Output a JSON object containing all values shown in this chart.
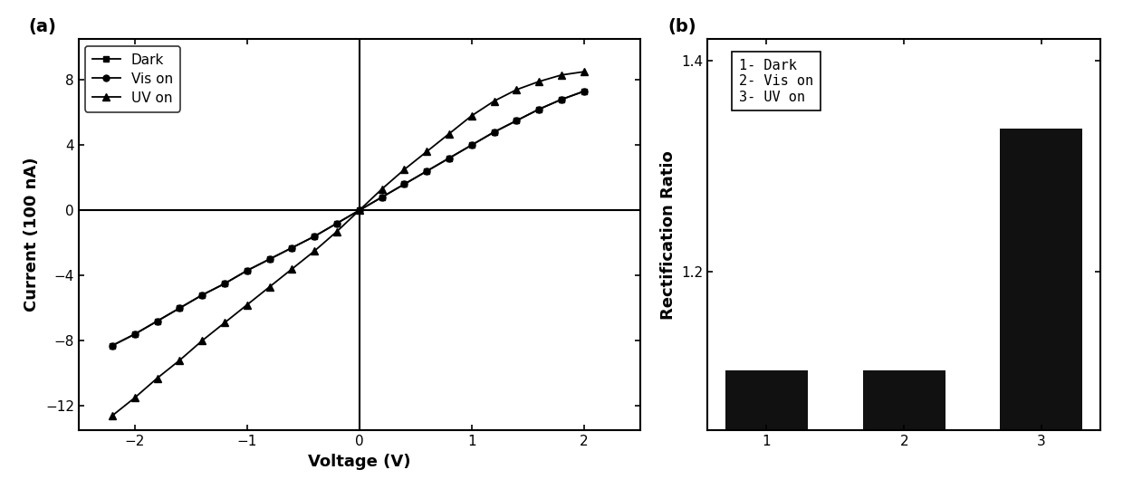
{
  "panel_a": {
    "dark_x": [
      -2.2,
      -2.0,
      -1.8,
      -1.6,
      -1.4,
      -1.2,
      -1.0,
      -0.8,
      -0.6,
      -0.4,
      -0.2,
      0.0,
      0.2,
      0.4,
      0.6,
      0.8,
      1.0,
      1.2,
      1.4,
      1.6,
      1.8,
      2.0
    ],
    "dark_y": [
      -8.3,
      -7.6,
      -6.8,
      -6.0,
      -5.2,
      -4.5,
      -3.7,
      -3.0,
      -2.3,
      -1.6,
      -0.8,
      0.0,
      0.8,
      1.6,
      2.4,
      3.2,
      4.0,
      4.8,
      5.5,
      6.2,
      6.8,
      7.3
    ],
    "vis_x": [
      -2.2,
      -2.0,
      -1.8,
      -1.6,
      -1.4,
      -1.2,
      -1.0,
      -0.8,
      -0.6,
      -0.4,
      -0.2,
      0.0,
      0.2,
      0.4,
      0.6,
      0.8,
      1.0,
      1.2,
      1.4,
      1.6,
      1.8,
      2.0
    ],
    "vis_y": [
      -8.3,
      -7.6,
      -6.8,
      -6.0,
      -5.2,
      -4.5,
      -3.7,
      -3.0,
      -2.3,
      -1.6,
      -0.8,
      0.0,
      0.8,
      1.6,
      2.4,
      3.2,
      4.0,
      4.8,
      5.5,
      6.2,
      6.8,
      7.3
    ],
    "uv_x": [
      -2.2,
      -2.0,
      -1.8,
      -1.6,
      -1.4,
      -1.2,
      -1.0,
      -0.8,
      -0.6,
      -0.4,
      -0.2,
      0.0,
      0.2,
      0.4,
      0.6,
      0.8,
      1.0,
      1.2,
      1.4,
      1.6,
      1.8,
      2.0
    ],
    "uv_y": [
      -12.6,
      -11.5,
      -10.3,
      -9.2,
      -8.0,
      -6.9,
      -5.8,
      -4.7,
      -3.6,
      -2.5,
      -1.3,
      0.0,
      1.3,
      2.5,
      3.6,
      4.7,
      5.8,
      6.7,
      7.4,
      7.9,
      8.3,
      8.5
    ],
    "xlabel": "Voltage (V)",
    "ylabel": "Current (100 nA)",
    "xlim": [
      -2.5,
      2.5
    ],
    "ylim": [
      -13.5,
      10.5
    ],
    "yticks": [
      -12,
      -8,
      -4,
      0,
      4,
      8
    ],
    "xticks": [
      -2,
      -1,
      0,
      1,
      2
    ],
    "legend_labels": [
      "Dark",
      "Vis on",
      "UV on"
    ],
    "panel_label": "(a)"
  },
  "panel_b": {
    "categories": [
      1,
      2,
      3
    ],
    "values": [
      1.107,
      1.107,
      1.335
    ],
    "ylabel": "Rectification Ratio",
    "ylim_bottom": 1.05,
    "ylim_top": 1.42,
    "yticks": [
      1.2,
      1.4
    ],
    "legend_text": "1- Dark\n2- Vis on\n3- UV on",
    "panel_label": "(b)",
    "bar_color": "#111111"
  },
  "background_color": "#ffffff",
  "spine_color": "#000000"
}
